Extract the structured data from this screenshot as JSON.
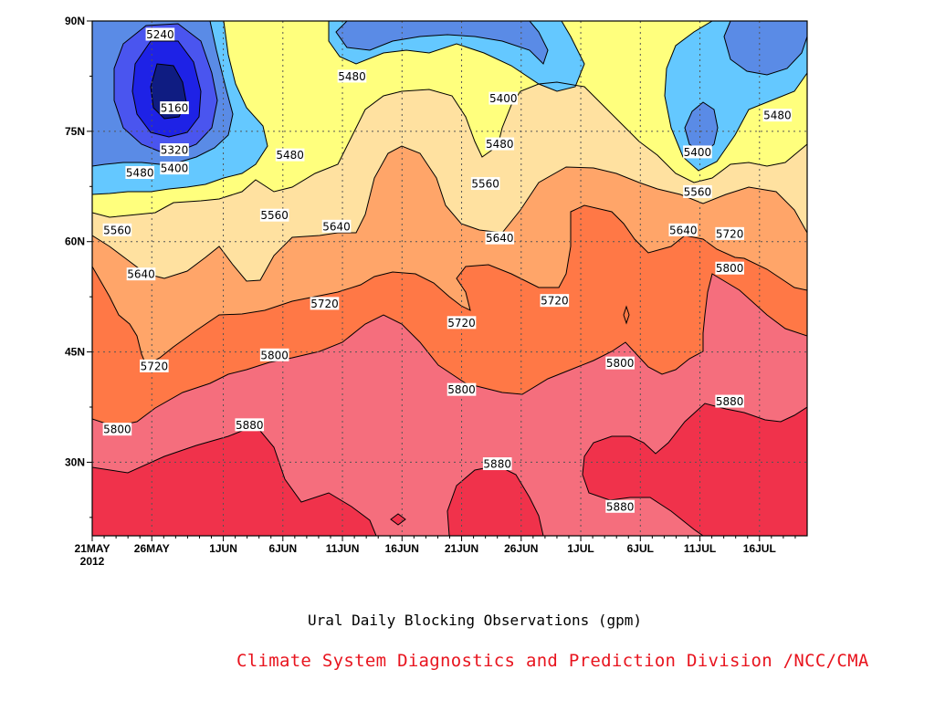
{
  "title": "Ural Daily Blocking Observations (gpm)",
  "credit": "Climate System Diagnostics and Prediction Division /NCC/CMA",
  "chart_data": {
    "type": "contour",
    "variable": "500hPa geopotential height (gpm)",
    "x_range": [
      "2012-05-21",
      "2012-07-20"
    ],
    "y_range": [
      20,
      90
    ],
    "y_unit": "degrees N",
    "xtick_labels": [
      "21MAY",
      "26MAY",
      "1JUN",
      "6JUN",
      "11JUN",
      "16JUN",
      "21JUN",
      "26JUN",
      "1JUL",
      "6JUL",
      "11JUL",
      "16JUL"
    ],
    "xtick_days": [
      0,
      5,
      11,
      16,
      21,
      26,
      31,
      36,
      41,
      46,
      51,
      56
    ],
    "year_label": "2012",
    "ytick_labels": [
      "30N",
      "45N",
      "60N",
      "75N",
      "90N"
    ],
    "ytick_values": [
      30,
      45,
      60,
      75,
      90
    ],
    "grid": "dotted",
    "contour_levels": [
      5160,
      5240,
      5320,
      5400,
      5480,
      5560,
      5640,
      5720,
      5800,
      5880
    ],
    "fill_colors": {
      "below_5160": "#0f1c82",
      "5160_5240": "#1e22e6",
      "5240_5320": "#4a55ef",
      "5320_5400": "#5a8be6",
      "5400_5480": "#64c8ff",
      "5480_5560": "#ffff7d",
      "5560_5640": "#ffe1a0",
      "5640_5720": "#ffa569",
      "5720_5800": "#ff7846",
      "5800_5880": "#f56e7d",
      "above_5880": "#f0324b"
    },
    "contour_labels": [
      {
        "value": "5240",
        "day": 5.7,
        "lat": 88.2
      },
      {
        "value": "5160",
        "day": 6.9,
        "lat": 78.2
      },
      {
        "value": "5320",
        "day": 6.9,
        "lat": 72.5
      },
      {
        "value": "5400",
        "day": 6.9,
        "lat": 70.0
      },
      {
        "value": "5480",
        "day": 4.0,
        "lat": 69.4
      },
      {
        "value": "5560",
        "day": 2.1,
        "lat": 61.6
      },
      {
        "value": "5640",
        "day": 4.1,
        "lat": 55.6
      },
      {
        "value": "5720",
        "day": 5.2,
        "lat": 43.1
      },
      {
        "value": "5800",
        "day": 2.1,
        "lat": 34.5
      },
      {
        "value": "5880",
        "day": 13.2,
        "lat": 35.1
      },
      {
        "value": "5800",
        "day": 15.3,
        "lat": 44.6
      },
      {
        "value": "5480",
        "day": 16.6,
        "lat": 71.8
      },
      {
        "value": "5560",
        "day": 15.3,
        "lat": 63.6
      },
      {
        "value": "5640",
        "day": 20.5,
        "lat": 62.1
      },
      {
        "value": "5720",
        "day": 19.5,
        "lat": 51.6
      },
      {
        "value": "5480",
        "day": 21.8,
        "lat": 82.5
      },
      {
        "value": "5720",
        "day": 31.0,
        "lat": 49.0
      },
      {
        "value": "5800",
        "day": 31.0,
        "lat": 39.9
      },
      {
        "value": "5880",
        "day": 34.0,
        "lat": 29.8
      },
      {
        "value": "5560",
        "day": 33.0,
        "lat": 67.9
      },
      {
        "value": "5640",
        "day": 34.2,
        "lat": 60.5
      },
      {
        "value": "5480",
        "day": 34.2,
        "lat": 73.3
      },
      {
        "value": "5400",
        "day": 34.5,
        "lat": 79.5
      },
      {
        "value": "5720",
        "day": 38.8,
        "lat": 52.0
      },
      {
        "value": "5800",
        "day": 44.3,
        "lat": 43.5
      },
      {
        "value": "5880",
        "day": 44.3,
        "lat": 24.0
      },
      {
        "value": "5400",
        "day": 50.8,
        "lat": 72.2
      },
      {
        "value": "5560",
        "day": 50.8,
        "lat": 66.8
      },
      {
        "value": "5640",
        "day": 49.6,
        "lat": 61.6
      },
      {
        "value": "5720",
        "day": 53.5,
        "lat": 61.1
      },
      {
        "value": "5800",
        "day": 53.5,
        "lat": 56.4
      },
      {
        "value": "5880",
        "day": 53.5,
        "lat": 38.3
      },
      {
        "value": "5480",
        "day": 57.5,
        "lat": 77.2
      }
    ]
  }
}
